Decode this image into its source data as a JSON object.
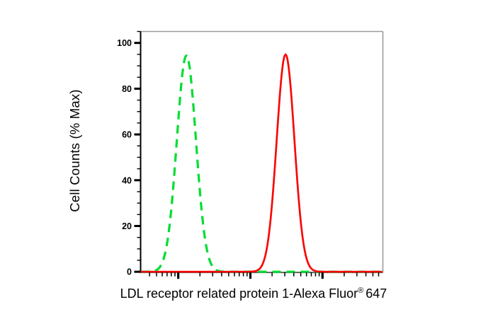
{
  "figure": {
    "background": "#ffffff",
    "y_axis": {
      "title": "Cell Counts (% Max)",
      "tick_labels": [
        "0",
        "20",
        "40",
        "60",
        "80",
        "100"
      ],
      "major_ticks_percent": [
        0,
        20,
        40,
        60,
        80,
        100
      ],
      "minor_tick_step_percent": 5,
      "range_percent": [
        0,
        105
      ]
    },
    "x_axis": {
      "title_main": "LDL receptor related protein 1-Alexa Fluor",
      "title_sup": "®",
      "title_suffix": "647",
      "scale": "log10",
      "range_decades": [
        0.478,
        3.837
      ],
      "decade_major_ticks": [
        1,
        2,
        3
      ],
      "numeric_labels_shown": false
    },
    "colors": {
      "axis": "#000000",
      "frame": "#9b9b9b",
      "tick": "#000000",
      "text": "#000000",
      "green_series": "#00dd33",
      "red_series": "#f90808"
    }
  },
  "chart_data": {
    "type": "line",
    "title": "",
    "xlabel": "LDL receptor related protein 1-Alexa Fluor® 647",
    "ylabel": "Cell Counts (% Max)",
    "x_scale": "log10",
    "x_range_decades": [
      0.478,
      3.837
    ],
    "ylim": [
      0,
      105
    ],
    "grid": false,
    "legend": "none",
    "series": [
      {
        "name": "green-dashed-peak",
        "style": "dashed",
        "color": "#00dd33",
        "stroke_width": 3.2,
        "peak_percent": 94.5,
        "center_decade": 1.113,
        "sigma_decade": 0.133,
        "baseline_percent": 0,
        "points_decade_percent": [
          [
            0.6,
            0.1
          ],
          [
            0.7,
            0.8
          ],
          [
            0.8,
            5.9
          ],
          [
            0.9,
            26.2
          ],
          [
            1.0,
            65.9
          ],
          [
            1.1,
            94.0
          ],
          [
            1.2,
            76.3
          ],
          [
            1.3,
            35.2
          ],
          [
            1.4,
            9.2
          ],
          [
            1.5,
            1.4
          ],
          [
            1.6,
            0.1
          ],
          [
            2.0,
            0.0
          ],
          [
            3.0,
            0.0
          ],
          [
            3.8,
            0.0
          ]
        ]
      },
      {
        "name": "red-solid-peak",
        "style": "solid",
        "color": "#f90808",
        "stroke_width": 2.7,
        "peak_percent": 95.0,
        "center_decade": 2.488,
        "sigma_decade": 0.123,
        "baseline_percent": 0,
        "points_decade_percent": [
          [
            0.5,
            0.0
          ],
          [
            1.5,
            0.0
          ],
          [
            2.0,
            0.1
          ],
          [
            2.1,
            0.7
          ],
          [
            2.2,
            6.1
          ],
          [
            2.3,
            29.5
          ],
          [
            2.4,
            73.6
          ],
          [
            2.5,
            94.6
          ],
          [
            2.6,
            62.7
          ],
          [
            2.7,
            21.5
          ],
          [
            2.8,
            3.8
          ],
          [
            2.9,
            0.4
          ],
          [
            3.0,
            0.0
          ],
          [
            3.8,
            0.0
          ]
        ]
      }
    ]
  }
}
